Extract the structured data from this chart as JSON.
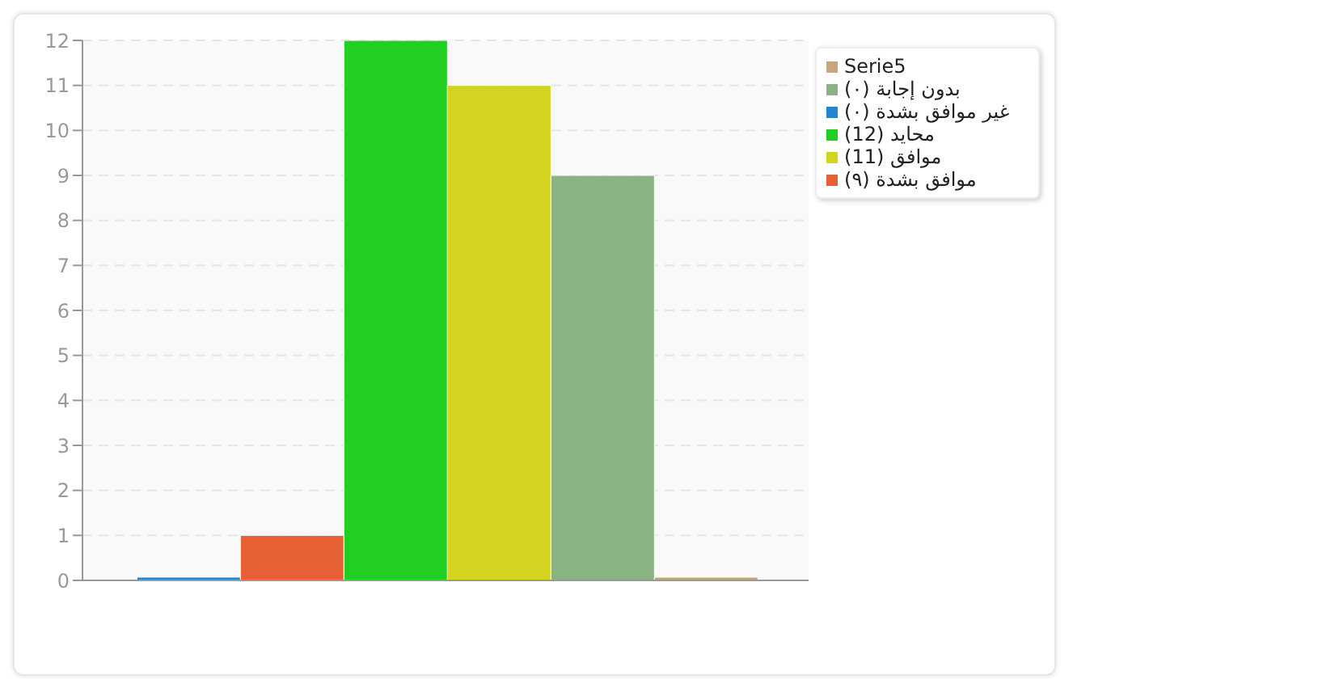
{
  "chart_data": {
    "type": "bar",
    "categories": [
      null
    ],
    "series": [
      {
        "name": "غير موافق بشدة (٠)",
        "color": "#1f86d4",
        "values": [
          0
        ]
      },
      {
        "name": "موافق بشدة (٩)",
        "color": "#e86035",
        "values": [
          1
        ]
      },
      {
        "name": "محايد (12)",
        "color": "#20cf22",
        "values": [
          12
        ]
      },
      {
        "name": "موافق (11)",
        "color": "#d3d41f",
        "values": [
          11
        ]
      },
      {
        "name": "بدون إجابة (٠)",
        "color": "#8ab384",
        "values": [
          9
        ]
      },
      {
        "name": "Serie5",
        "color": "#c9a57e",
        "values": [
          0
        ]
      }
    ],
    "ylim": [
      0,
      12
    ],
    "yticks": [
      0,
      1,
      2,
      3,
      4,
      5,
      6,
      7,
      8,
      9,
      10,
      11,
      12
    ],
    "grid": "y",
    "legend": "right"
  }
}
